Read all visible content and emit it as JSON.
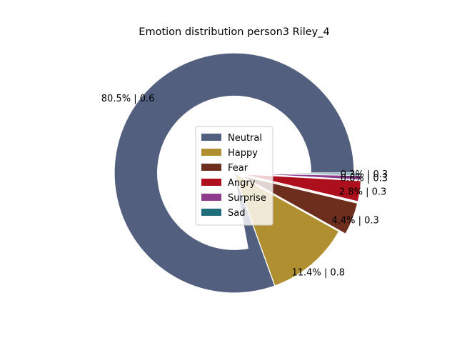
{
  "chart_data": {
    "type": "pie",
    "subtype": "donut",
    "title": "Emotion distribution person3 Riley_4",
    "legend_position": "center",
    "slices": [
      {
        "name": "Neutral",
        "percent": 80.5,
        "score": 0.6,
        "label": "80.5% | 0.6",
        "color": "#535f7f",
        "exploded": false
      },
      {
        "name": "Happy",
        "percent": 11.4,
        "score": 0.8,
        "label": "11.4% | 0.8",
        "color": "#b08f30",
        "exploded": false
      },
      {
        "name": "Fear",
        "percent": 4.4,
        "score": 0.3,
        "label": "4.4% | 0.3",
        "color": "#6e2e1d",
        "exploded": true
      },
      {
        "name": "Angry",
        "percent": 2.8,
        "score": 0.3,
        "label": "2.8% | 0.3",
        "color": "#ad0f1c",
        "exploded": true
      },
      {
        "name": "Surprise",
        "percent": 0.6,
        "score": 0.3,
        "label": "0.6% | 0.3",
        "color": "#8e3b8d",
        "exploded": true
      },
      {
        "name": "Sad",
        "percent": 0.3,
        "score": 0.3,
        "label": "0.3% | 0.3",
        "color": "#1d6e7a",
        "exploded": true
      }
    ],
    "inner_fill_color": "#f0e6d6"
  }
}
